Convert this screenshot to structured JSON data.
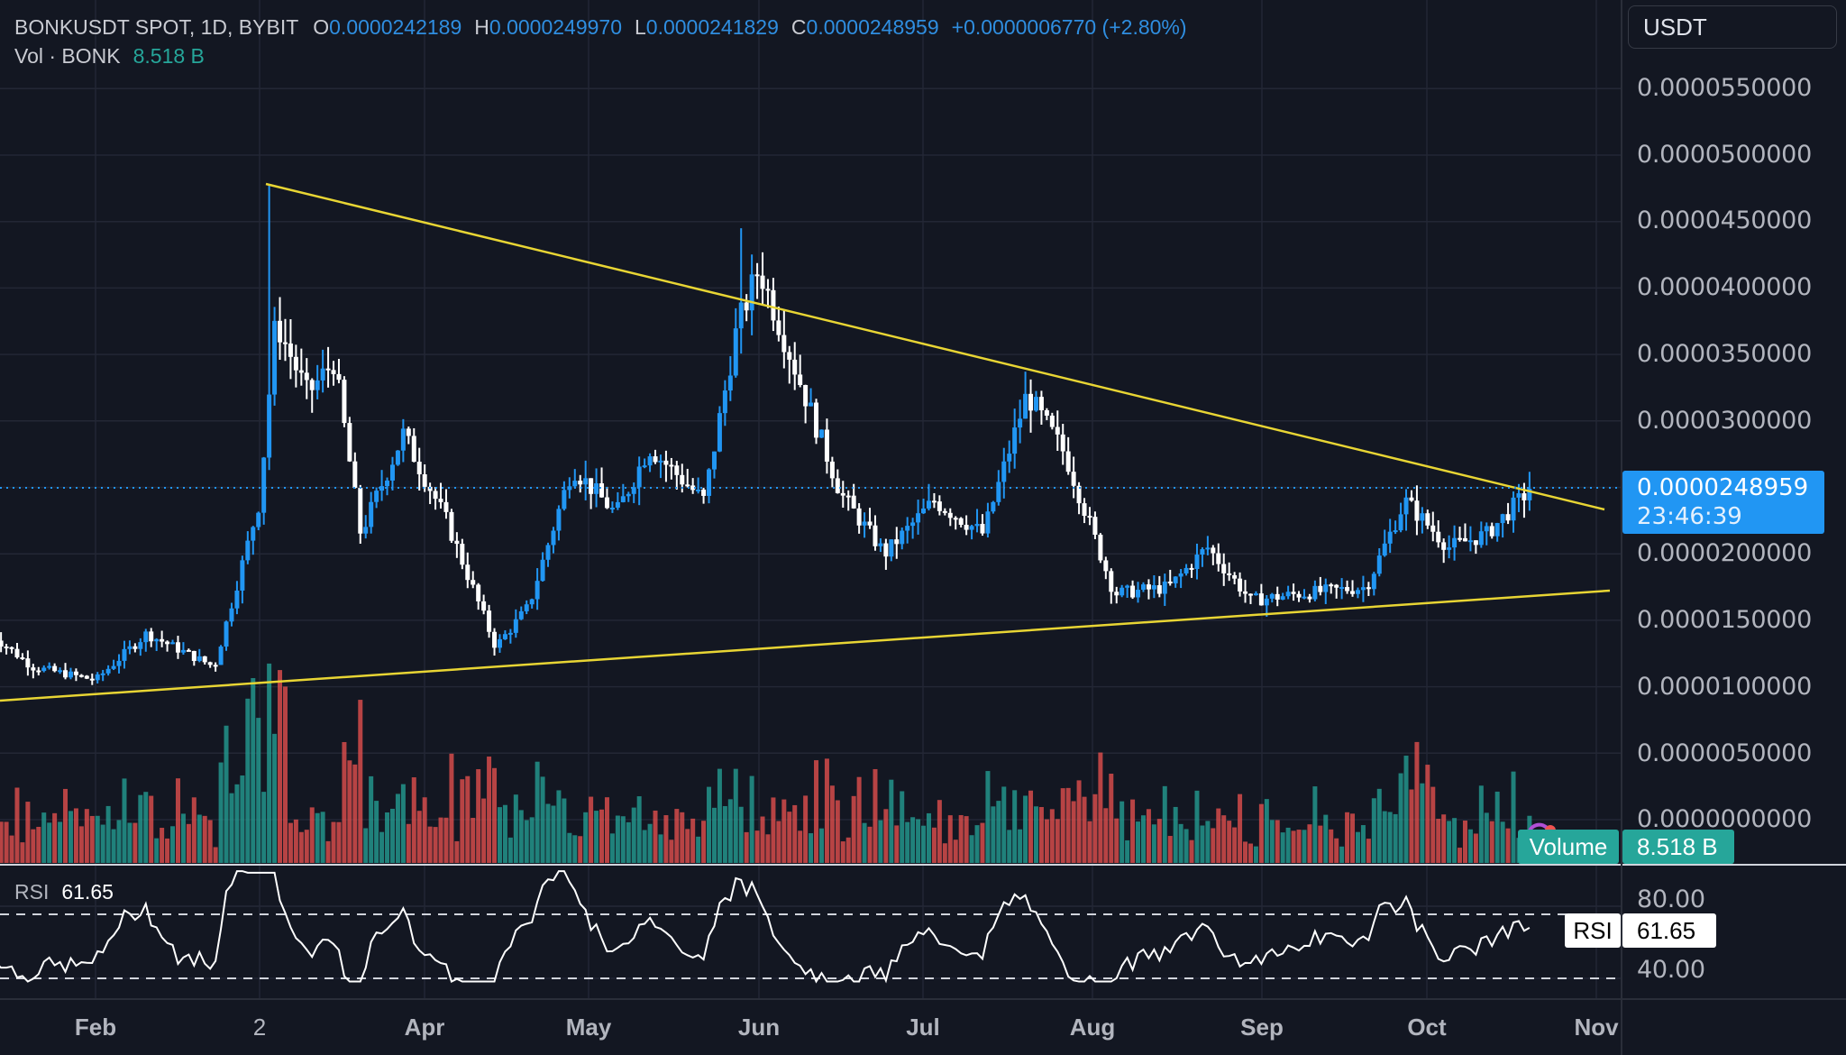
{
  "header": {
    "symbol": "BONKUSDT SPOT, 1D, BYBIT",
    "open_label": "O",
    "open": "0.0000242189",
    "high_label": "H",
    "high": "0.0000249970",
    "low_label": "L",
    "low": "0.0000241829",
    "close_label": "C",
    "close": "0.0000248959",
    "change": "+0.0000006770 (+2.80%)",
    "vol_label": "Vol · BONK",
    "vol_value": "8.518 B"
  },
  "price_axis": {
    "unit": "USDT",
    "ticks": [
      "0.0000550000",
      "0.0000500000",
      "0.0000450000",
      "0.0000400000",
      "0.0000350000",
      "0.0000300000",
      "0.0000200000",
      "0.0000150000",
      "0.0000100000",
      "0.0000050000",
      "0.0000000000"
    ],
    "current_price": "0.0000248959",
    "countdown": "23:46:39"
  },
  "volume_badge": {
    "label": "Volume",
    "value": "8.518 B"
  },
  "rsi": {
    "label": "RSI",
    "value": "61.65",
    "ticks": [
      "80.00",
      "40.00"
    ]
  },
  "time_axis": [
    "Feb",
    "2",
    "Apr",
    "May",
    "Jun",
    "Jul",
    "Aug",
    "Sep",
    "Oct",
    "Nov"
  ],
  "colors": {
    "background": "#131722",
    "up_candle": "#2196f3",
    "down_candle": "#ffffff",
    "volume_up": "#26a69a",
    "volume_down": "#ef5350",
    "trendline": "#e8d534",
    "price_line": "#2196f3",
    "grid": "#232735"
  },
  "chart_data": {
    "type": "candlestick",
    "title": "BONKUSDT SPOT, 1D, BYBIT",
    "ylabel": "USDT",
    "ylim": [
      0,
      5.75e-05
    ],
    "x_ticks": [
      "Feb",
      "2 (Mar)",
      "Apr",
      "May",
      "Jun",
      "Jul",
      "Aug",
      "Sep",
      "Oct",
      "Nov"
    ],
    "approx_close_path": [
      {
        "date": "Jan 12",
        "close": 1.4e-05
      },
      {
        "date": "Jan 20",
        "close": 1.15e-05
      },
      {
        "date": "Feb 1",
        "close": 1.05e-05
      },
      {
        "date": "Feb 10",
        "close": 1.4e-05
      },
      {
        "date": "Feb 22",
        "close": 1.15e-05
      },
      {
        "date": "Mar 1",
        "close": 2.4e-05
      },
      {
        "date": "Mar 4",
        "close": 3.75e-05
      },
      {
        "date": "Mar 10",
        "close": 3.2e-05
      },
      {
        "date": "Mar 15",
        "close": 3.45e-05
      },
      {
        "date": "Mar 20",
        "close": 2.15e-05
      },
      {
        "date": "Mar 28",
        "close": 2.9e-05
      },
      {
        "date": "Apr 5",
        "close": 2.25e-05
      },
      {
        "date": "Apr 14",
        "close": 1.3e-05
      },
      {
        "date": "Apr 20",
        "close": 1.6e-05
      },
      {
        "date": "Apr 28",
        "close": 2.65e-05
      },
      {
        "date": "May 6",
        "close": 2.3e-05
      },
      {
        "date": "May 12",
        "close": 2.8e-05
      },
      {
        "date": "May 22",
        "close": 2.4e-05
      },
      {
        "date": "May 28",
        "close": 3.7e-05
      },
      {
        "date": "Jun 1",
        "close": 4.15e-05
      },
      {
        "date": "Jun 8",
        "close": 3.35e-05
      },
      {
        "date": "Jun 16",
        "close": 2.45e-05
      },
      {
        "date": "Jun 24",
        "close": 2e-05
      },
      {
        "date": "Jul 3",
        "close": 2.4e-05
      },
      {
        "date": "Jul 12",
        "close": 2.15e-05
      },
      {
        "date": "Jul 20",
        "close": 3.2e-05
      },
      {
        "date": "Jul 27",
        "close": 2.75e-05
      },
      {
        "date": "Aug 5",
        "close": 1.7e-05
      },
      {
        "date": "Aug 15",
        "close": 1.75e-05
      },
      {
        "date": "Aug 22",
        "close": 2.05e-05
      },
      {
        "date": "Aug 30",
        "close": 1.65e-05
      },
      {
        "date": "Sep 8",
        "close": 1.7e-05
      },
      {
        "date": "Sep 20",
        "close": 1.75e-05
      },
      {
        "date": "Sep 27",
        "close": 2.4e-05
      },
      {
        "date": "Oct 5",
        "close": 2.05e-05
      },
      {
        "date": "Oct 12",
        "close": 2.15e-05
      },
      {
        "date": "Oct 20",
        "close": 2.48959e-05
      }
    ],
    "trendlines": [
      {
        "name": "descending resistance",
        "from": {
          "date": "Mar 4",
          "price": 4.78e-05
        },
        "to": {
          "date": "Oct 26",
          "price": 2.32e-05
        }
      },
      {
        "name": "ascending support",
        "from": {
          "date": "Jan 1",
          "price": 9.3e-06
        },
        "to": {
          "date": "Oct 26",
          "price": 1.72e-05
        }
      }
    ],
    "current_price_line": 2.48959e-05,
    "volume": {
      "last": "8.518 B",
      "peak_period": "early March"
    },
    "rsi": {
      "last": 61.65,
      "upper_band": 70,
      "lower_band": 30,
      "axis_ticks": [
        80,
        40
      ]
    }
  }
}
